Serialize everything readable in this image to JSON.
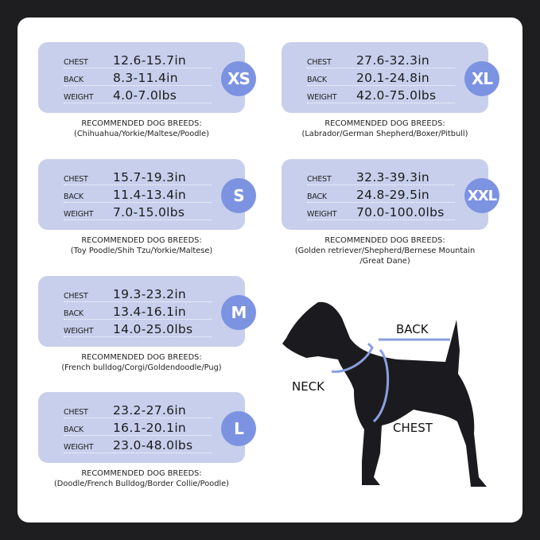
{
  "labels": {
    "chest": "CHEST",
    "back": "BACK",
    "weight": "WEIGHT",
    "recommended": "RECOMMENDED DOG BREEDS:"
  },
  "colors": {
    "card": "#c7cfec",
    "badge": "#7c93e2",
    "measure_line": "#8a9fe0",
    "dog": "#1b1b1f"
  },
  "sizes": [
    {
      "size": "XS",
      "chest": "12.6-15.7in",
      "back": "8.3-11.4in",
      "weight": "4.0-7.0lbs",
      "breeds": [
        "(Chihuahua/Yorkie/Maltese/Poodle)"
      ]
    },
    {
      "size": "S",
      "chest": "15.7-19.3in",
      "back": "11.4-13.4in",
      "weight": "7.0-15.0lbs",
      "breeds": [
        "(Toy Poodle/Shih Tzu/Yorkie/Maltese)"
      ]
    },
    {
      "size": "M",
      "chest": "19.3-23.2in",
      "back": "13.4-16.1in",
      "weight": "14.0-25.0lbs",
      "breeds": [
        "(French bulldog/Corgi/Goldendoodle/Pug)"
      ]
    },
    {
      "size": "L",
      "chest": "23.2-27.6in",
      "back": "16.1-20.1in",
      "weight": "23.0-48.0lbs",
      "breeds": [
        "(Doodle/French Bulldog/Border Collie/Poodle)"
      ]
    },
    {
      "size": "XL",
      "chest": "27.6-32.3in",
      "back": "20.1-24.8in",
      "weight": "42.0-75.0lbs",
      "breeds": [
        "(Labrador/German Shepherd/Boxer/Pitbull)"
      ]
    },
    {
      "size": "XXL",
      "chest": "32.3-39.3in",
      "back": "24.8-29.5in",
      "weight": "70.0-100.0lbs",
      "breeds": [
        "(Golden retriever/Shepherd/Bernese Mountain",
        "/Great Dane)"
      ]
    }
  ],
  "diagram": {
    "back": "BACK",
    "neck": "NECK",
    "chest": "CHEST"
  }
}
